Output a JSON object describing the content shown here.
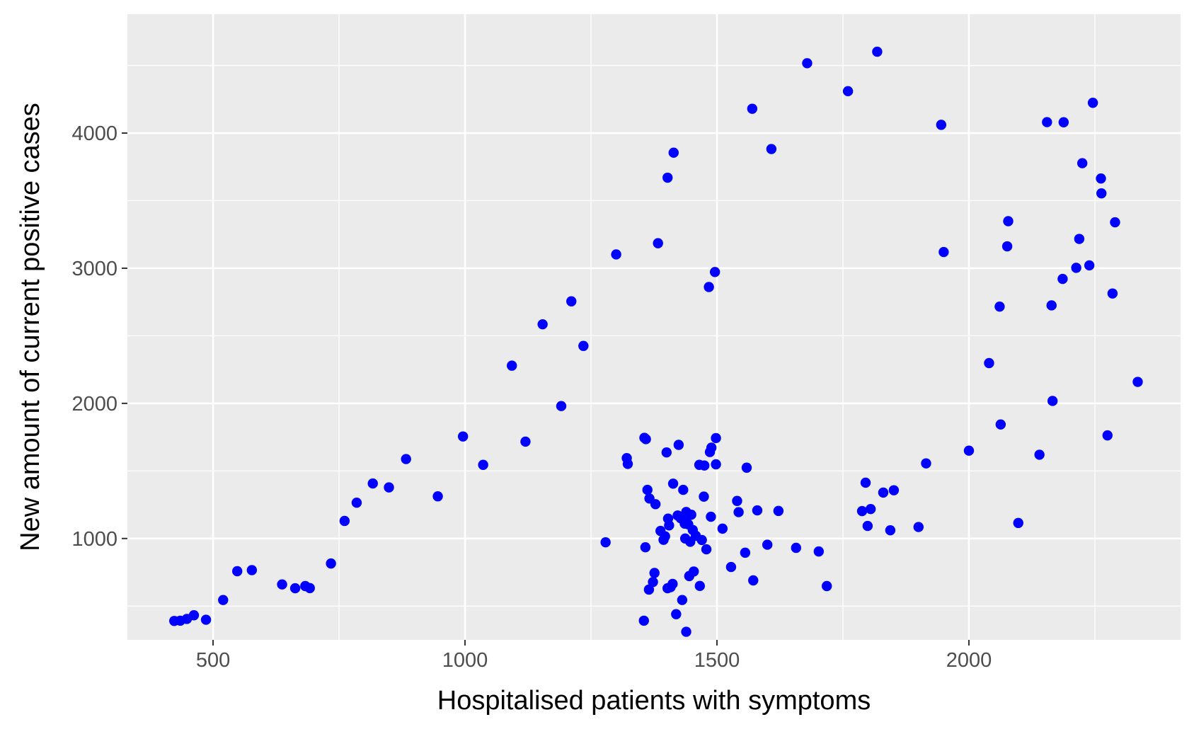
{
  "chart_data": {
    "type": "scatter",
    "title": "",
    "xlabel": "Hospitalised patients with symptoms",
    "ylabel": "New amount of current positive cases",
    "xlim": [
      330,
      2420
    ],
    "ylim": [
      250,
      4880
    ],
    "xticks": [
      500,
      1000,
      1500,
      2000
    ],
    "yticks": [
      1000,
      2000,
      3000,
      4000
    ],
    "xtick_labels": [
      "500",
      "1000",
      "1500",
      "2000"
    ],
    "ytick_labels": [
      "1000",
      "2000",
      "3000",
      "4000"
    ],
    "grid": true,
    "legend": "none",
    "colors": {
      "point": "#0000ff",
      "panel_bg": "#ebebeb",
      "grid": "#ffffff"
    },
    "points": [
      [
        423,
        390
      ],
      [
        435,
        392
      ],
      [
        448,
        405
      ],
      [
        462,
        432
      ],
      [
        486,
        399
      ],
      [
        520,
        545
      ],
      [
        548,
        758
      ],
      [
        577,
        766
      ],
      [
        637,
        660
      ],
      [
        663,
        632
      ],
      [
        683,
        648
      ],
      [
        692,
        633
      ],
      [
        734,
        815
      ],
      [
        761,
        1130
      ],
      [
        785,
        1265
      ],
      [
        817,
        1407
      ],
      [
        849,
        1378
      ],
      [
        883,
        1588
      ],
      [
        946,
        1312
      ],
      [
        996,
        1755
      ],
      [
        1036,
        1545
      ],
      [
        1093,
        2279
      ],
      [
        1120,
        1717
      ],
      [
        1154,
        2585
      ],
      [
        1191,
        1980
      ],
      [
        1211,
        2755
      ],
      [
        1235,
        2425
      ],
      [
        1279,
        972
      ],
      [
        1300,
        3102
      ],
      [
        1321,
        1595
      ],
      [
        1323,
        1552
      ],
      [
        1355,
        392
      ],
      [
        1356,
        1745
      ],
      [
        1359,
        1735
      ],
      [
        1358,
        935
      ],
      [
        1362,
        1360
      ],
      [
        1365,
        622
      ],
      [
        1366,
        1296
      ],
      [
        1373,
        678
      ],
      [
        1376,
        745
      ],
      [
        1378,
        1254
      ],
      [
        1383,
        3185
      ],
      [
        1388,
        1056
      ],
      [
        1394,
        990
      ],
      [
        1397,
        1016
      ],
      [
        1400,
        1637
      ],
      [
        1402,
        3670
      ],
      [
        1402,
        632
      ],
      [
        1403,
        1147
      ],
      [
        1405,
        1097
      ],
      [
        1408,
        640
      ],
      [
        1412,
        664
      ],
      [
        1413,
        1406
      ],
      [
        1414,
        3855
      ],
      [
        1419,
        440
      ],
      [
        1422,
        1170
      ],
      [
        1424,
        1693
      ],
      [
        1428,
        1150
      ],
      [
        1431,
        545
      ],
      [
        1433,
        1360
      ],
      [
        1436,
        1110
      ],
      [
        1437,
        1000
      ],
      [
        1439,
        1196
      ],
      [
        1439,
        310
      ],
      [
        1442,
        1176
      ],
      [
        1443,
        1105
      ],
      [
        1445,
        722
      ],
      [
        1447,
        976
      ],
      [
        1449,
        1176
      ],
      [
        1452,
        1063
      ],
      [
        1454,
        756
      ],
      [
        1458,
        1020
      ],
      [
        1465,
        1545
      ],
      [
        1466,
        649
      ],
      [
        1470,
        989
      ],
      [
        1474,
        1310
      ],
      [
        1475,
        1540
      ],
      [
        1479,
        920
      ],
      [
        1484,
        2861
      ],
      [
        1486,
        1640
      ],
      [
        1488,
        1161
      ],
      [
        1489,
        1672
      ],
      [
        1496,
        2972
      ],
      [
        1498,
        1743
      ],
      [
        1498,
        1549
      ],
      [
        1511,
        1073
      ],
      [
        1528,
        789
      ],
      [
        1540,
        1278
      ],
      [
        1543,
        1195
      ],
      [
        1556,
        895
      ],
      [
        1559,
        1524
      ],
      [
        1570,
        4180
      ],
      [
        1572,
        690
      ],
      [
        1580,
        1208
      ],
      [
        1600,
        954
      ],
      [
        1608,
        3882
      ],
      [
        1622,
        1204
      ],
      [
        1657,
        931
      ],
      [
        1679,
        4517
      ],
      [
        1702,
        904
      ],
      [
        1718,
        648
      ],
      [
        1760,
        4310
      ],
      [
        1788,
        1203
      ],
      [
        1795,
        1413
      ],
      [
        1799,
        1093
      ],
      [
        1805,
        1218
      ],
      [
        1818,
        4602
      ],
      [
        1830,
        1340
      ],
      [
        1844,
        1061
      ],
      [
        1851,
        1357
      ],
      [
        1900,
        1085
      ],
      [
        1915,
        1556
      ],
      [
        1945,
        4061
      ],
      [
        1950,
        3120
      ],
      [
        2000,
        1650
      ],
      [
        2040,
        2298
      ],
      [
        2061,
        2716
      ],
      [
        2063,
        1844
      ],
      [
        2076,
        3162
      ],
      [
        2078,
        3348
      ],
      [
        2098,
        1115
      ],
      [
        2140,
        1620
      ],
      [
        2155,
        4081
      ],
      [
        2164,
        2725
      ],
      [
        2166,
        2018
      ],
      [
        2186,
        2921
      ],
      [
        2188,
        4080
      ],
      [
        2213,
        3003
      ],
      [
        2219,
        3217
      ],
      [
        2225,
        3777
      ],
      [
        2239,
        3021
      ],
      [
        2246,
        4224
      ],
      [
        2262,
        3664
      ],
      [
        2263,
        3554
      ],
      [
        2275,
        1763
      ],
      [
        2285,
        2813
      ],
      [
        2290,
        3340
      ],
      [
        2335,
        2159
      ]
    ]
  }
}
